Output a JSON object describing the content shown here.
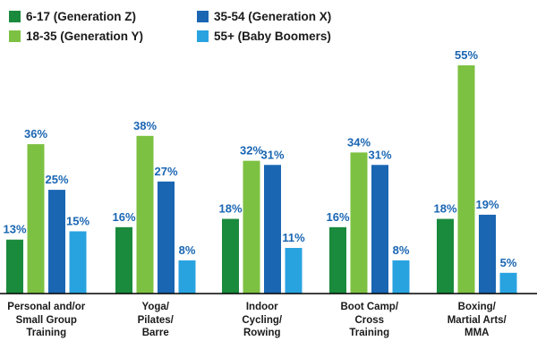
{
  "chart_data": {
    "type": "bar",
    "categories": [
      [
        "Personal and/or",
        "Small Group",
        "Training"
      ],
      [
        "Yoga/",
        "Pilates/",
        "Barre"
      ],
      [
        "Indoor",
        "Cycling/",
        "Rowing"
      ],
      [
        "Boot Camp/",
        "Cross",
        "Training"
      ],
      [
        "Boxing/",
        "Martial Arts/",
        "MMA"
      ]
    ],
    "series": [
      {
        "name": "6-17 (Generation Z)",
        "color": "#1a8a3c",
        "values": [
          13,
          16,
          18,
          16,
          18
        ]
      },
      {
        "name": "18-35 (Generation Y)",
        "color": "#7dc142",
        "values": [
          36,
          38,
          32,
          34,
          55
        ]
      },
      {
        "name": "35-54 (Generation X)",
        "color": "#1a66b3",
        "values": [
          25,
          27,
          31,
          31,
          19
        ]
      },
      {
        "name": "55+ (Baby Boomers)",
        "color": "#29a3e0",
        "values": [
          15,
          8,
          11,
          8,
          5
        ]
      }
    ],
    "value_suffix": "%",
    "label_color": "#1a66b3",
    "ylim": [
      0,
      55
    ],
    "grid": false,
    "legend_position": "top-left"
  }
}
